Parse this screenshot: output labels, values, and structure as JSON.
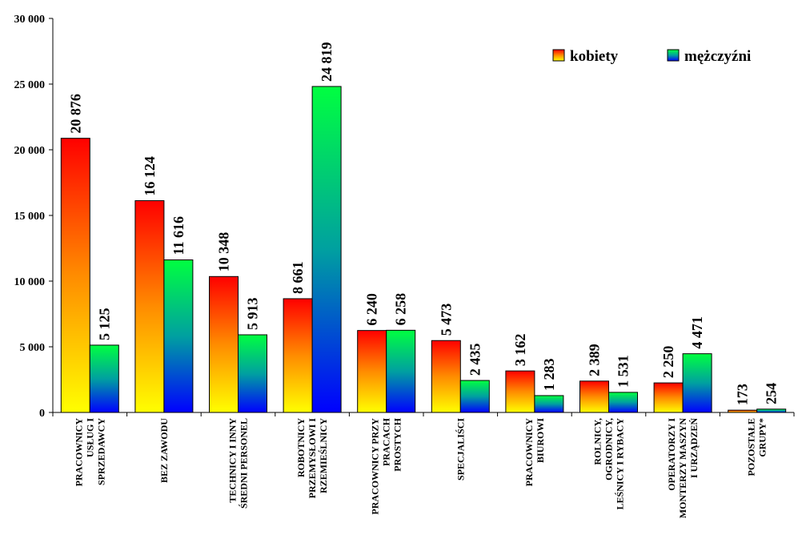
{
  "chart_data": {
    "type": "bar",
    "title": "",
    "xlabel": "",
    "ylabel": "",
    "ylim": [
      0,
      30000
    ],
    "yticks": [
      0,
      5000,
      10000,
      15000,
      20000,
      25000,
      30000
    ],
    "ytick_labels": [
      "0",
      "5 000",
      "10 000",
      "15 000",
      "20 000",
      "25 000",
      "30 000"
    ],
    "grid": false,
    "legend_position": "top-right",
    "categories": [
      [
        "PRACOWNICY",
        "USŁUG I",
        "SPRZEDAWCY"
      ],
      [
        "BEZ ZAWODU"
      ],
      [
        "TECHNICY I INNY",
        "ŚREDNI PERSONEL"
      ],
      [
        "ROBOTNICY",
        "PRZEMYSŁOWI I",
        "RZEMIEŚLNICY"
      ],
      [
        "PRACOWNICY PRZY",
        "PRACACH",
        "PROSTYCH"
      ],
      [
        "SPECJALIŚCI"
      ],
      [
        "PRACOWNICY",
        "BIUROWI"
      ],
      [
        "ROLNICY,",
        "OGRODNICY,",
        "LEŚNICY I RYBACY"
      ],
      [
        "OPERATORZY I",
        "MONTERZY MASZYN",
        "I URZĄDZEŃ"
      ],
      [
        "POZOSTAŁE",
        "GRUPY*"
      ]
    ],
    "series": [
      {
        "name": "kobiety",
        "values": [
          20876,
          16124,
          10348,
          8661,
          6240,
          5473,
          3162,
          2389,
          2250,
          173
        ],
        "labels": [
          "20 876",
          "16 124",
          "10 348",
          "8 661",
          "6 240",
          "5 473",
          "3 162",
          "2 389",
          "2 250",
          "173"
        ],
        "gradient": [
          "#ff0000",
          "#ffff00"
        ]
      },
      {
        "name": "mężczyźni",
        "values": [
          5125,
          11616,
          5913,
          24819,
          6258,
          2435,
          1283,
          1531,
          4471,
          254
        ],
        "labels": [
          "5 125",
          "11 616",
          "5 913",
          "24 819",
          "6 258",
          "2 435",
          "1 283",
          "1 531",
          "4 471",
          "254"
        ],
        "gradient": [
          "#00ff40",
          "#0000ff"
        ]
      }
    ]
  }
}
